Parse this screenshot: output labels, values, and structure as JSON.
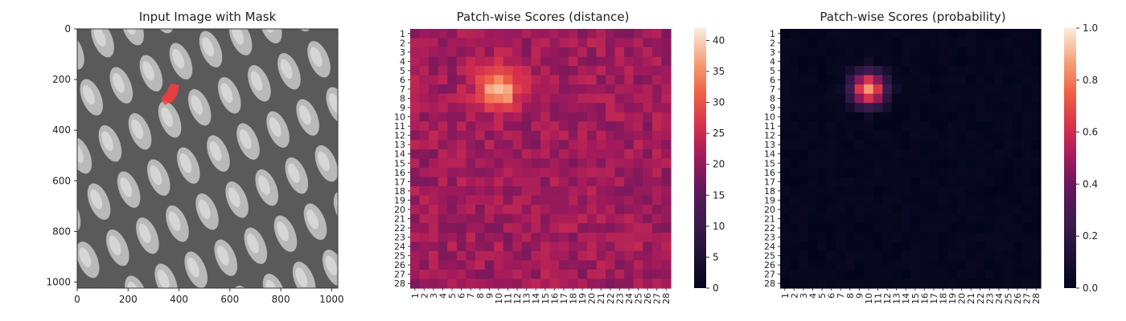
{
  "chart_data": [
    {
      "type": "image",
      "title": "Input Image with Mask",
      "xlim": [
        0,
        1024
      ],
      "ylim": [
        1024,
        0
      ],
      "x_ticks": [
        "0",
        "200",
        "400",
        "600",
        "800",
        "1000"
      ],
      "y_ticks": [
        "0",
        "200",
        "400",
        "600",
        "800",
        "1000"
      ],
      "content": "grayscale diagonal mesh texture",
      "mask": {
        "color": "#ff3b3b",
        "x_range": [
          330,
          400
        ],
        "y_range": [
          215,
          300
        ]
      }
    },
    {
      "type": "heatmap",
      "title": "Patch-wise Scores (distance)",
      "grid_size": 28,
      "x_ticks": [
        "1",
        "2",
        "3",
        "4",
        "5",
        "6",
        "7",
        "8",
        "9",
        "10",
        "11",
        "12",
        "13",
        "14",
        "15",
        "16",
        "17",
        "18",
        "19",
        "20",
        "21",
        "22",
        "23",
        "24",
        "25",
        "26",
        "27",
        "28"
      ],
      "y_ticks": [
        "1",
        "2",
        "3",
        "4",
        "5",
        "6",
        "7",
        "8",
        "9",
        "10",
        "11",
        "12",
        "13",
        "14",
        "15",
        "16",
        "17",
        "18",
        "19",
        "20",
        "21",
        "22",
        "23",
        "24",
        "25",
        "26",
        "27",
        "28"
      ],
      "colorbar": {
        "min": 0,
        "max": 42,
        "ticks": [
          "0",
          "5",
          "10",
          "15",
          "20",
          "25",
          "30",
          "35",
          "40"
        ]
      },
      "colormap": "rocket",
      "background_level": 21,
      "hotspot": {
        "row": 7,
        "col": 10,
        "peak": 41
      }
    },
    {
      "type": "heatmap",
      "title": "Patch-wise Scores (probability)",
      "grid_size": 28,
      "x_ticks": [
        "1",
        "2",
        "3",
        "4",
        "5",
        "6",
        "7",
        "8",
        "9",
        "10",
        "11",
        "12",
        "13",
        "14",
        "15",
        "16",
        "17",
        "18",
        "19",
        "20",
        "21",
        "22",
        "23",
        "24",
        "25",
        "26",
        "27",
        "28"
      ],
      "y_ticks": [
        "1",
        "2",
        "3",
        "4",
        "5",
        "6",
        "7",
        "8",
        "9",
        "10",
        "11",
        "12",
        "13",
        "14",
        "15",
        "16",
        "17",
        "18",
        "19",
        "20",
        "21",
        "22",
        "23",
        "24",
        "25",
        "26",
        "27",
        "28"
      ],
      "colorbar": {
        "min": 0.0,
        "max": 1.0,
        "ticks": [
          "0.0",
          "0.2",
          "0.4",
          "0.6",
          "0.8",
          "1.0"
        ]
      },
      "colormap": "rocket",
      "background_level": 0.0,
      "hotspot": {
        "row": 7,
        "col": 10,
        "peak": 0.85
      }
    }
  ]
}
